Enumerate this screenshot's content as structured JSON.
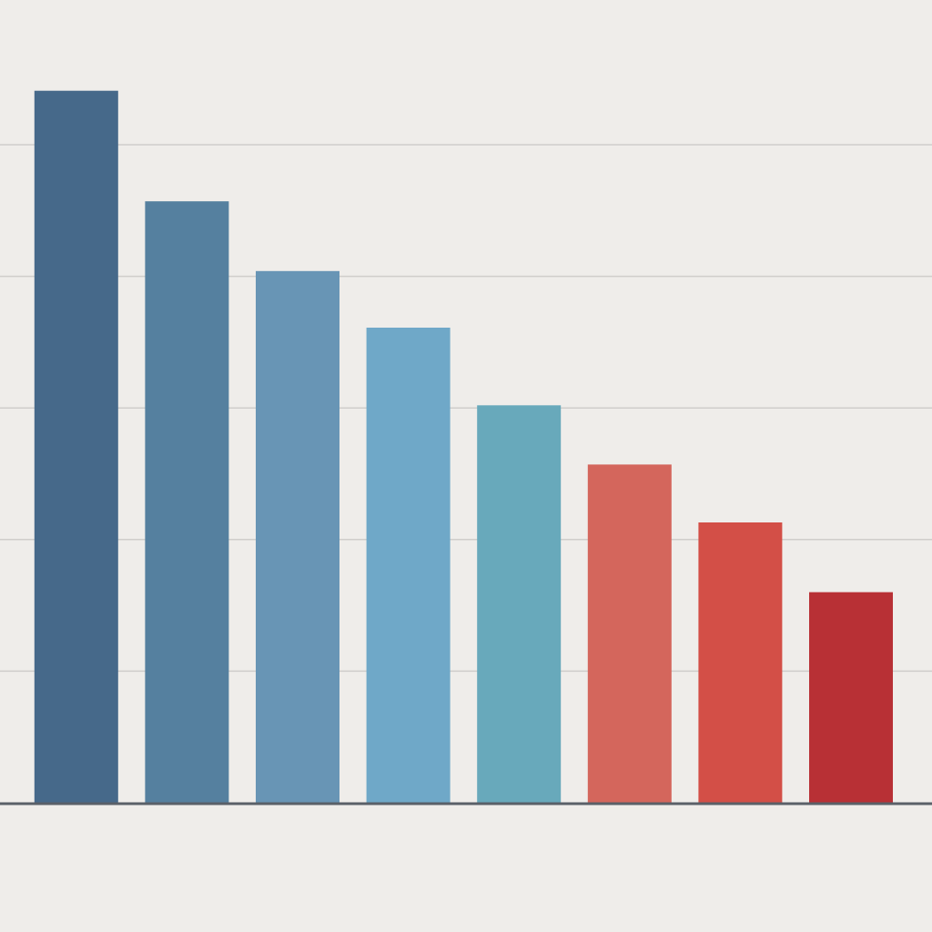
{
  "chart_data": {
    "type": "bar",
    "categories": [
      null,
      null,
      null,
      null,
      null,
      null,
      null,
      null
    ],
    "values": [
      5.41,
      4.57,
      4.04,
      3.61,
      3.02,
      2.57,
      2.13,
      1.6
    ],
    "colors": [
      "#46698a",
      "#55809f",
      "#6895b5",
      "#6fa8c8",
      "#68a9bb",
      "#d4665c",
      "#d34f47",
      "#b83035"
    ],
    "ylim": [
      0,
      6
    ],
    "yticks": [
      1,
      2,
      3,
      4,
      5
    ],
    "grid": true
  }
}
